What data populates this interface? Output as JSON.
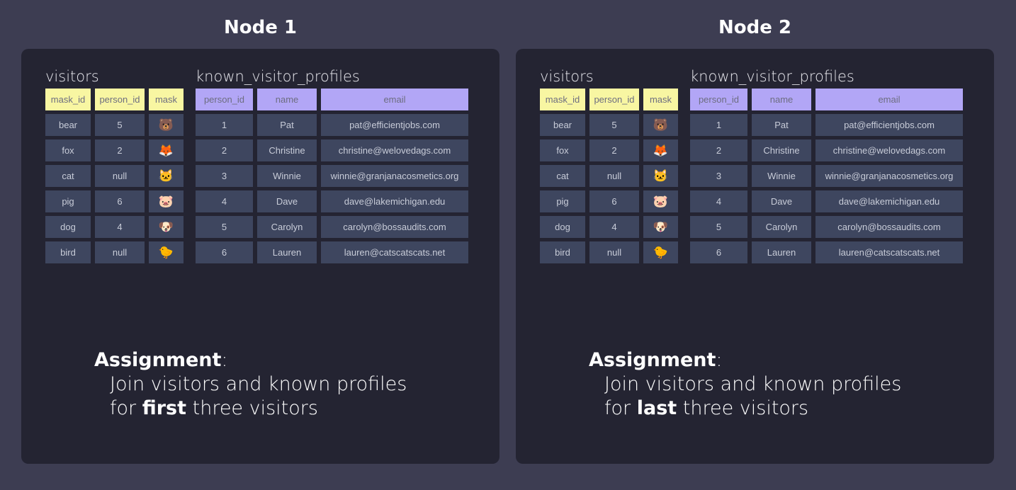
{
  "nodes": [
    {
      "title": "Node 1",
      "assignment": {
        "heading": "Assignment",
        "colon": ":",
        "line1": "Join visitors and known profiles",
        "line2_pre": "for ",
        "line2_bold": "first",
        "line2_post": " three visitors"
      }
    },
    {
      "title": "Node 2",
      "assignment": {
        "heading": "Assignment",
        "colon": ":",
        "line1": "Join visitors and known profiles",
        "line2_pre": "for ",
        "line2_bold": "last",
        "line2_post": " three visitors"
      }
    }
  ],
  "visitors": {
    "label": "visitors",
    "columns": [
      "mask_id",
      "person_id",
      "mask"
    ],
    "rows": [
      [
        "bear",
        "5",
        "🐻"
      ],
      [
        "fox",
        "2",
        "🦊"
      ],
      [
        "cat",
        "null",
        "🐱"
      ],
      [
        "pig",
        "6",
        "🐷"
      ],
      [
        "dog",
        "4",
        "🐶"
      ],
      [
        "bird",
        "null",
        "🐤"
      ]
    ]
  },
  "profiles": {
    "label": "known_visitor_profiles",
    "columns": [
      "person_id",
      "name",
      "email"
    ],
    "rows": [
      [
        "1",
        "Pat",
        "pat@efficientjobs.com"
      ],
      [
        "2",
        "Christine",
        "christine@welovedags.com"
      ],
      [
        "3",
        "Winnie",
        "winnie@granjanacosmetics.org"
      ],
      [
        "4",
        "Dave",
        "dave@lakemichigan.edu"
      ],
      [
        "5",
        "Carolyn",
        "carolyn@bossaudits.com"
      ],
      [
        "6",
        "Lauren",
        "lauren@catscatscats.net"
      ]
    ]
  },
  "colors": {
    "visitors_header": "#f8f6a2",
    "profiles_header": "#b2a6f6",
    "cell": "#3e465f",
    "panel": "#242432",
    "background": "#3d3d52"
  }
}
